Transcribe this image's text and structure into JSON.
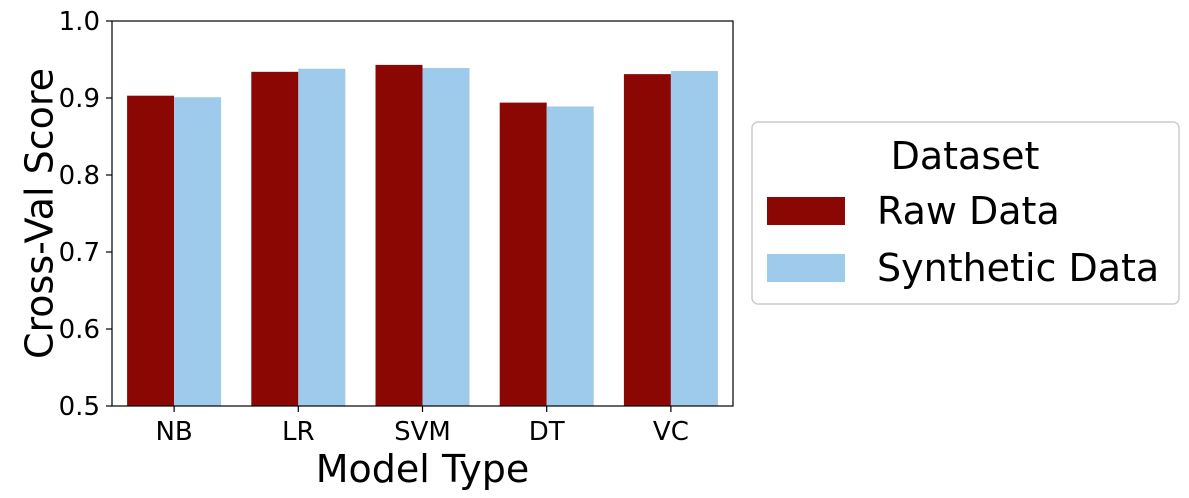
{
  "chart_data": {
    "type": "bar",
    "categories": [
      "NB",
      "LR",
      "SVM",
      "DT",
      "VC"
    ],
    "series": [
      {
        "name": "Raw Data",
        "values": [
          0.903,
          0.934,
          0.943,
          0.894,
          0.931
        ],
        "color": "#8b0704"
      },
      {
        "name": "Synthetic Data",
        "values": [
          0.901,
          0.938,
          0.939,
          0.889,
          0.935
        ],
        "color": "#9ecaeb"
      }
    ],
    "xlabel": "Model Type",
    "ylabel": "Cross-Val Score",
    "ylim": [
      0.5,
      1.0
    ],
    "yticks": [
      "0.5",
      "0.6",
      "0.7",
      "0.8",
      "0.9",
      "1.0"
    ],
    "grid": false,
    "legend": {
      "title": "Dataset",
      "placement": "right-outside"
    }
  }
}
